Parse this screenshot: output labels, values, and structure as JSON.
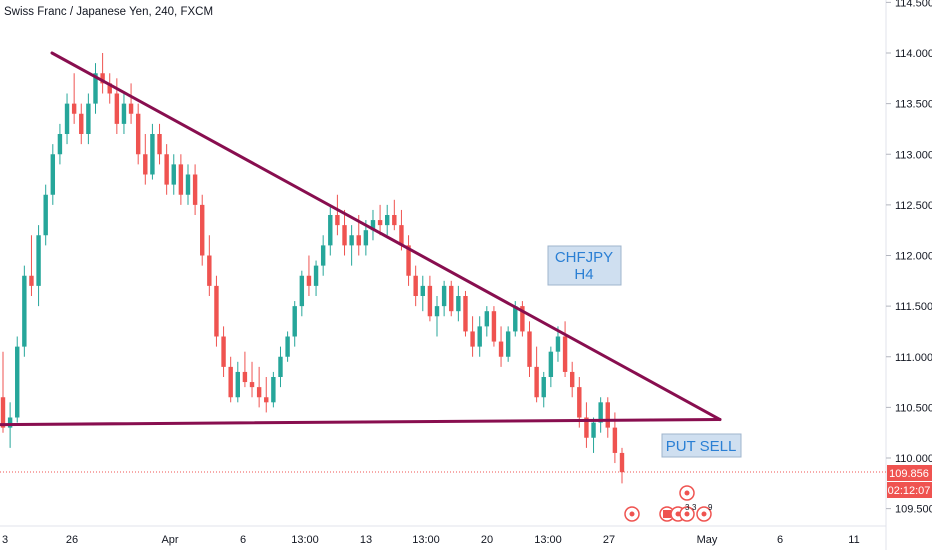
{
  "header": {
    "title": "Swiss Franc / Japanese Yen, 240, FXCM"
  },
  "chart_data": {
    "type": "candlestick",
    "symbol": "Swiss Franc / Japanese Yen",
    "interval": "240",
    "source": "FXCM",
    "y_ticks": [
      "114.500",
      "114.000",
      "113.500",
      "113.000",
      "112.500",
      "112.000",
      "111.500",
      "111.000",
      "110.500",
      "110.000",
      "109.500"
    ],
    "x_ticks": [
      "3",
      "26",
      "Apr",
      "6",
      "13:00",
      "13",
      "13:00",
      "20",
      "13:00",
      "27",
      "May",
      "6",
      "11"
    ],
    "ylim": [
      109.3,
      114.55
    ],
    "last_price": "109.856",
    "countdown": "02:12:07",
    "colors": {
      "up": "#26a69a",
      "down": "#ef5350",
      "trendline": "#880e4f",
      "price_line": "#ef5350"
    },
    "trendlines": [
      {
        "name": "descending-resistance",
        "points": [
          [
            52,
            114.0
          ],
          [
            720,
            110.38
          ]
        ]
      },
      {
        "name": "horizontal-support",
        "points": [
          [
            0,
            110.33
          ],
          [
            720,
            110.38
          ]
        ]
      }
    ],
    "annotations": [
      {
        "text": "CHFJPY\nH4"
      },
      {
        "text": "PUT SELL"
      }
    ],
    "events": [
      "3",
      "3",
      "9"
    ],
    "candles": [
      [
        110.6,
        111.05,
        110.25,
        110.3
      ],
      [
        110.3,
        110.55,
        110.1,
        110.4
      ],
      [
        110.4,
        111.2,
        110.35,
        111.1
      ],
      [
        111.1,
        111.9,
        111.0,
        111.8
      ],
      [
        111.8,
        112.2,
        111.6,
        111.7
      ],
      [
        111.7,
        112.3,
        111.5,
        112.2
      ],
      [
        112.2,
        112.7,
        112.1,
        112.6
      ],
      [
        112.6,
        113.1,
        112.5,
        113.0
      ],
      [
        113.0,
        113.3,
        112.9,
        113.2
      ],
      [
        113.2,
        113.6,
        113.1,
        113.5
      ],
      [
        113.5,
        113.8,
        113.3,
        113.4
      ],
      [
        113.4,
        113.5,
        113.1,
        113.2
      ],
      [
        113.2,
        113.6,
        113.1,
        113.5
      ],
      [
        113.5,
        113.9,
        113.4,
        113.8
      ],
      [
        113.8,
        114.0,
        113.6,
        113.7
      ],
      [
        113.7,
        113.8,
        113.5,
        113.6
      ],
      [
        113.6,
        113.75,
        113.2,
        113.3
      ],
      [
        113.3,
        113.6,
        113.2,
        113.5
      ],
      [
        113.5,
        113.7,
        113.3,
        113.4
      ],
      [
        113.4,
        113.5,
        112.9,
        113.0
      ],
      [
        113.0,
        113.2,
        112.7,
        112.8
      ],
      [
        112.8,
        113.3,
        112.75,
        113.2
      ],
      [
        113.2,
        113.3,
        112.9,
        113.0
      ],
      [
        113.0,
        113.1,
        112.6,
        112.7
      ],
      [
        112.7,
        113.0,
        112.6,
        112.9
      ],
      [
        112.9,
        113.0,
        112.5,
        112.6
      ],
      [
        112.6,
        112.9,
        112.5,
        112.8
      ],
      [
        112.8,
        112.9,
        112.4,
        112.5
      ],
      [
        112.5,
        112.6,
        111.9,
        112.0
      ],
      [
        112.0,
        112.2,
        111.6,
        111.7
      ],
      [
        111.7,
        111.8,
        111.1,
        111.2
      ],
      [
        111.2,
        111.3,
        110.8,
        110.9
      ],
      [
        110.9,
        111.0,
        110.55,
        110.6
      ],
      [
        110.6,
        110.95,
        110.55,
        110.85
      ],
      [
        110.85,
        111.05,
        110.7,
        110.75
      ],
      [
        110.75,
        110.95,
        110.6,
        110.7
      ],
      [
        110.7,
        110.9,
        110.5,
        110.6
      ],
      [
        110.6,
        110.8,
        110.45,
        110.55
      ],
      [
        110.55,
        110.85,
        110.5,
        110.8
      ],
      [
        110.8,
        111.1,
        110.7,
        111.0
      ],
      [
        111.0,
        111.25,
        110.95,
        111.2
      ],
      [
        111.2,
        111.55,
        111.1,
        111.5
      ],
      [
        111.5,
        111.85,
        111.4,
        111.8
      ],
      [
        111.8,
        112.0,
        111.6,
        111.7
      ],
      [
        111.7,
        111.95,
        111.6,
        111.9
      ],
      [
        111.9,
        112.2,
        111.8,
        112.1
      ],
      [
        112.1,
        112.5,
        112.0,
        112.4
      ],
      [
        112.4,
        112.6,
        112.2,
        112.3
      ],
      [
        112.3,
        112.45,
        112.0,
        112.1
      ],
      [
        112.1,
        112.3,
        111.9,
        112.2
      ],
      [
        112.2,
        112.4,
        112.0,
        112.1
      ],
      [
        112.1,
        112.35,
        112.0,
        112.25
      ],
      [
        112.25,
        112.45,
        112.15,
        112.35
      ],
      [
        112.35,
        112.5,
        112.2,
        112.3
      ],
      [
        112.3,
        112.5,
        112.2,
        112.4
      ],
      [
        112.4,
        112.55,
        112.25,
        112.3
      ],
      [
        112.3,
        112.45,
        112.05,
        112.1
      ],
      [
        112.1,
        112.2,
        111.7,
        111.8
      ],
      [
        111.8,
        111.9,
        111.5,
        111.6
      ],
      [
        111.6,
        111.8,
        111.45,
        111.7
      ],
      [
        111.7,
        111.8,
        111.35,
        111.4
      ],
      [
        111.4,
        111.6,
        111.2,
        111.5
      ],
      [
        111.5,
        111.75,
        111.4,
        111.7
      ],
      [
        111.7,
        111.75,
        111.4,
        111.45
      ],
      [
        111.45,
        111.7,
        111.35,
        111.6
      ],
      [
        111.6,
        111.65,
        111.2,
        111.25
      ],
      [
        111.25,
        111.4,
        111.0,
        111.1
      ],
      [
        111.1,
        111.4,
        111.0,
        111.3
      ],
      [
        111.3,
        111.5,
        111.2,
        111.45
      ],
      [
        111.45,
        111.5,
        111.1,
        111.15
      ],
      [
        111.15,
        111.3,
        110.9,
        111.0
      ],
      [
        111.0,
        111.3,
        110.95,
        111.25
      ],
      [
        111.25,
        111.55,
        111.2,
        111.5
      ],
      [
        111.5,
        111.55,
        111.2,
        111.25
      ],
      [
        111.25,
        111.35,
        110.8,
        110.9
      ],
      [
        110.9,
        111.1,
        110.55,
        110.6
      ],
      [
        110.6,
        110.85,
        110.5,
        110.8
      ],
      [
        110.8,
        111.1,
        110.7,
        111.05
      ],
      [
        111.05,
        111.3,
        110.95,
        111.2
      ],
      [
        111.2,
        111.35,
        110.8,
        110.85
      ],
      [
        110.85,
        110.95,
        110.6,
        110.7
      ],
      [
        110.7,
        110.8,
        110.3,
        110.4
      ],
      [
        110.4,
        110.55,
        110.1,
        110.2
      ],
      [
        110.2,
        110.4,
        110.05,
        110.35
      ],
      [
        110.35,
        110.6,
        110.25,
        110.55
      ],
      [
        110.55,
        110.6,
        110.2,
        110.3
      ],
      [
        110.3,
        110.45,
        109.95,
        110.05
      ],
      [
        110.05,
        110.1,
        109.75,
        109.86
      ]
    ]
  }
}
